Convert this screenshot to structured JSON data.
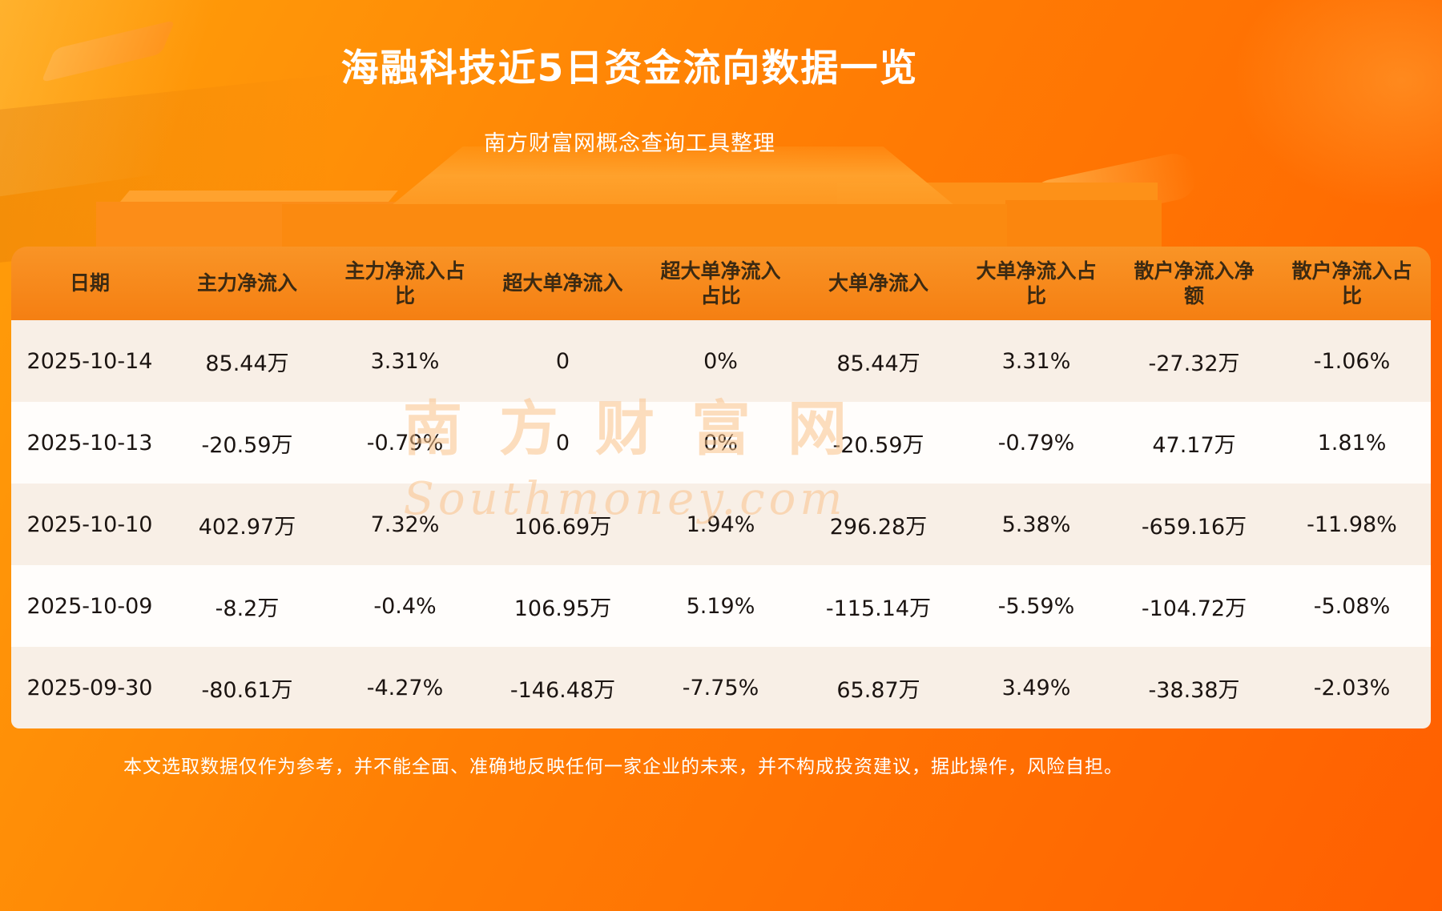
{
  "page": {
    "title": "海融科技近5日资金流向数据一览",
    "subtitle": "南方财富网概念查询工具整理",
    "disclaimer": "本文选取数据仅作为参考，并不能全面、准确地反映任何一家企业的未来，并不构成投资建议，据此操作，风险自担。",
    "watermark_cn": "南方财富网",
    "watermark_en": "Southmoney.com"
  },
  "colors": {
    "bg_top": "#ffa00a",
    "bg_mid": "#ff7e04",
    "bg_bottom": "#ff5f01",
    "header_bg": "#f57f12",
    "header_text": "#3c2a12",
    "row_odd": "#f8efe6",
    "row_even": "#fffdfb",
    "cell_text": "#1b1411",
    "title_text": "#ffffff",
    "watermark": "#fac38c"
  },
  "chart_data": {
    "type": "table",
    "title": "海融科技近5日资金流向数据一览",
    "columns": [
      "日期",
      "主力净流入",
      "主力净流入占比",
      "超大单净流入",
      "超大单净流入占比",
      "大单净流入",
      "大单净流入占比",
      "散户净流入净额",
      "散户净流入占比"
    ],
    "rows": [
      [
        "2025-10-14",
        "85.44万",
        "3.31%",
        "0",
        "0%",
        "85.44万",
        "3.31%",
        "-27.32万",
        "-1.06%"
      ],
      [
        "2025-10-13",
        "-20.59万",
        "-0.79%",
        "0",
        "0%",
        "-20.59万",
        "-0.79%",
        "47.17万",
        "1.81%"
      ],
      [
        "2025-10-10",
        "402.97万",
        "7.32%",
        "106.69万",
        "1.94%",
        "296.28万",
        "5.38%",
        "-659.16万",
        "-11.98%"
      ],
      [
        "2025-10-09",
        "-8.2万",
        "-0.4%",
        "106.95万",
        "5.19%",
        "-115.14万",
        "-5.59%",
        "-104.72万",
        "-5.08%"
      ],
      [
        "2025-09-30",
        "-80.61万",
        "-4.27%",
        "-146.48万",
        "-7.75%",
        "65.87万",
        "3.49%",
        "-38.38万",
        "-2.03%"
      ]
    ]
  }
}
